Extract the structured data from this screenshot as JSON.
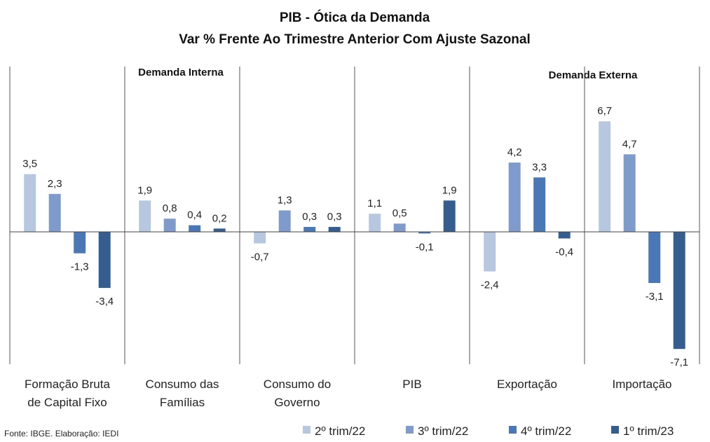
{
  "chart_data": {
    "type": "bar",
    "title": "PIB - Ótica da Demanda",
    "subtitle": "Var % Frente Ao Trimestre Anterior Com Ajuste Sazonal",
    "group_labels": [
      "Demanda  Interna",
      "Demanda  Externa"
    ],
    "categories": [
      [
        "Formação Bruta",
        "de Capital Fixo"
      ],
      [
        "Consumo das",
        "Famílias"
      ],
      [
        "Consumo do",
        "Governo"
      ],
      [
        "PIB"
      ],
      [
        "Exportação"
      ],
      [
        "Importação"
      ]
    ],
    "series": [
      {
        "name": "2º trim/22",
        "color": "#b8c7e0",
        "values": [
          3.5,
          1.9,
          -0.7,
          1.1,
          -2.4,
          6.7
        ]
      },
      {
        "name": "3º trim/22",
        "color": "#7f9bcb",
        "values": [
          2.3,
          0.8,
          1.3,
          0.5,
          4.2,
          4.7
        ]
      },
      {
        "name": "4º trim/22",
        "color": "#4a77b6",
        "values": [
          -1.3,
          0.4,
          0.3,
          -0.1,
          3.3,
          -3.1
        ]
      },
      {
        "name": "1º trim/23",
        "color": "#355d8f",
        "values": [
          -3.4,
          0.2,
          0.3,
          1.9,
          -0.4,
          -7.1
        ]
      }
    ],
    "value_labels": [
      [
        "3,5",
        "1,9",
        "-0,7",
        "1,1",
        "-2,4",
        "6,7"
      ],
      [
        "2,3",
        "0,8",
        "1,3",
        "0,5",
        "4,2",
        "4,7"
      ],
      [
        "-1,3",
        "0,4",
        "0,3",
        "-0,1",
        "3,3",
        "-3,1"
      ],
      [
        "-3,4",
        "0,2",
        "0,3",
        "1,9",
        "-0,4",
        "-7,1"
      ]
    ],
    "legend_position": "bottom-right",
    "grid": false
  },
  "source": "Fonte: IBGE. Elaboração: IEDI"
}
